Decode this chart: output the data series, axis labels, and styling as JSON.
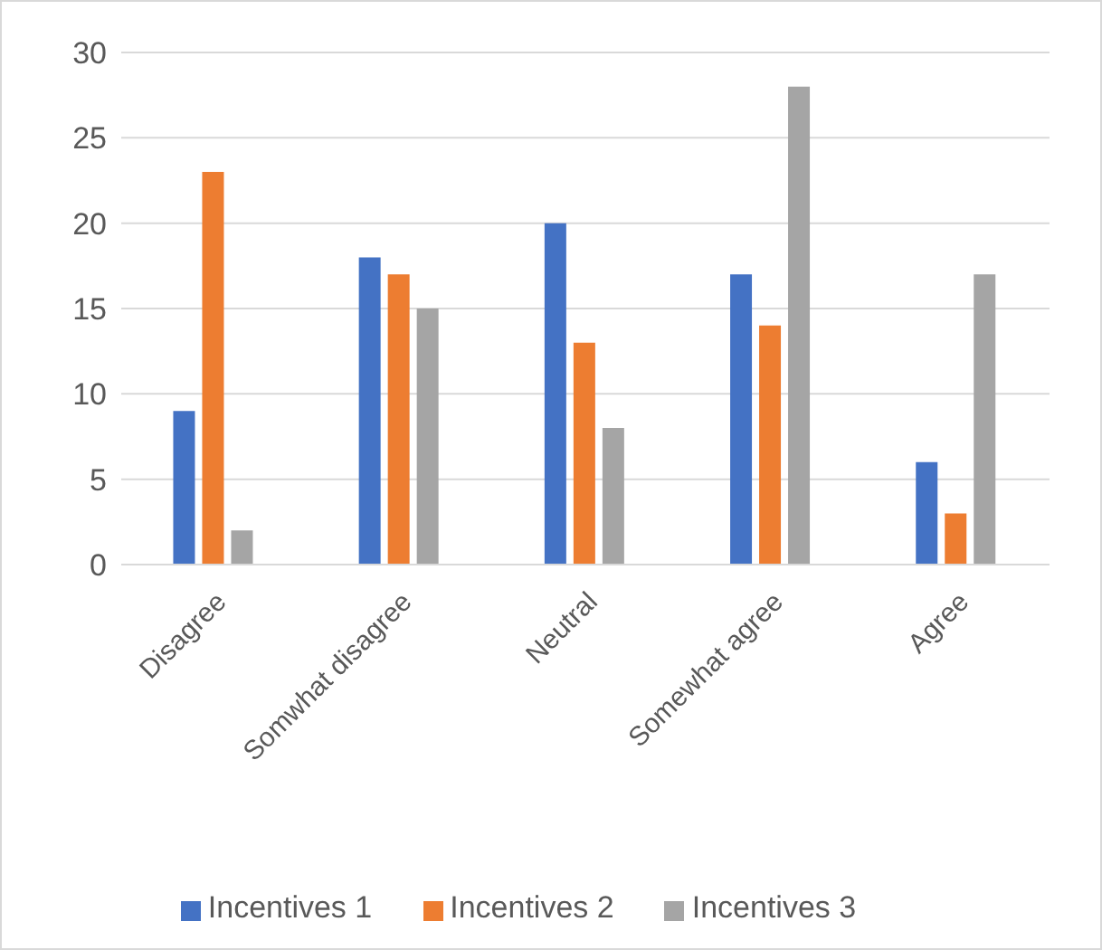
{
  "chart_data": {
    "type": "bar",
    "categories": [
      "Disagree",
      "Somwhat disagree",
      "Neutral",
      "Somewhat agree",
      "Agree"
    ],
    "series": [
      {
        "name": "Incentives 1",
        "color": "#4472c4",
        "values": [
          9,
          18,
          20,
          17,
          6
        ]
      },
      {
        "name": "Incentives 2",
        "color": "#ed7d31",
        "values": [
          23,
          17,
          13,
          14,
          3
        ]
      },
      {
        "name": "Incentives 3",
        "color": "#a5a5a5",
        "values": [
          2,
          15,
          8,
          28,
          17
        ]
      }
    ],
    "ylim": [
      0,
      30
    ],
    "yticks": [
      0,
      5,
      10,
      15,
      20,
      25,
      30
    ],
    "grid": "y",
    "legend": "bottom"
  }
}
